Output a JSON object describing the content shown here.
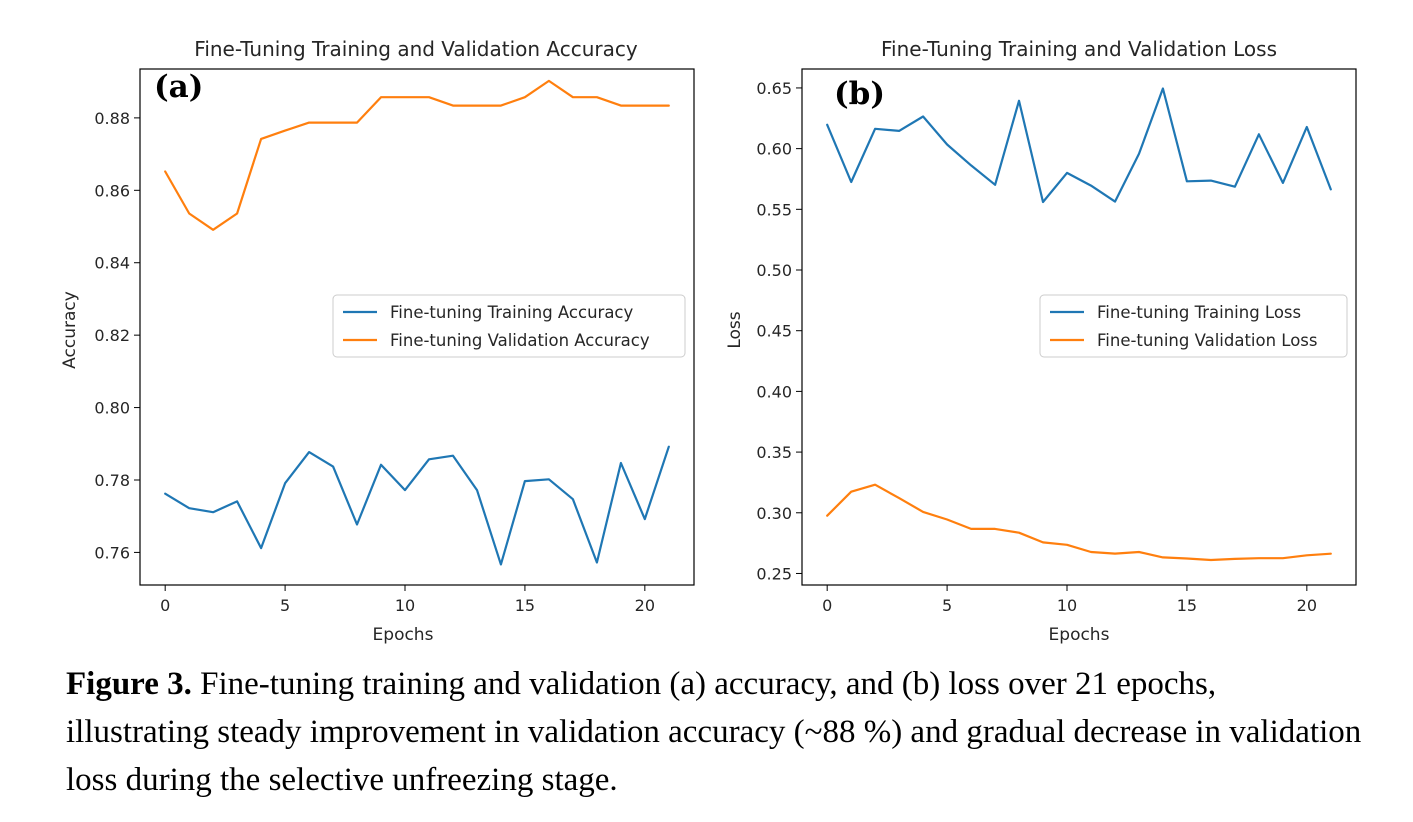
{
  "figure": {
    "caption_label": "Figure 3.",
    "caption_text": " Fine-tuning training and validation (a) accuracy, and (b) loss over 21 epochs, illustrating steady improvement in validation accuracy (~88 %) and gradual decrease in validation loss during the selective unfreezing stage."
  },
  "chart_data": [
    {
      "type": "line",
      "panel_tag": "(a)",
      "title": "Fine-Tuning Training and Validation Accuracy",
      "xlabel": "Epochs",
      "ylabel": "Accuracy",
      "xlim": [
        -1.05,
        22.05
      ],
      "ylim": [
        0.751,
        0.8935
      ],
      "xticks": [
        0,
        5,
        10,
        15,
        20
      ],
      "yticks": [
        0.76,
        0.78,
        0.8,
        0.82,
        0.84,
        0.86,
        0.88
      ],
      "ytick_labels": [
        "0.76",
        "0.78",
        "0.80",
        "0.82",
        "0.84",
        "0.86",
        "0.88"
      ],
      "grid": false,
      "legend_position": "center-right",
      "x": [
        0,
        1,
        2,
        3,
        4,
        5,
        6,
        7,
        8,
        9,
        10,
        11,
        12,
        13,
        14,
        15,
        16,
        17,
        18,
        19,
        20,
        21
      ],
      "series": [
        {
          "name": "Fine-tuning Training Accuracy",
          "color": "#1f77b4",
          "values": [
            0.7762,
            0.7722,
            0.7711,
            0.7741,
            0.7612,
            0.7791,
            0.7877,
            0.7837,
            0.7677,
            0.7842,
            0.7772,
            0.7857,
            0.7867,
            0.7772,
            0.7567,
            0.7797,
            0.7802,
            0.7747,
            0.7572,
            0.7847,
            0.7692,
            0.7892
          ]
        },
        {
          "name": "Fine-tuning Validation Accuracy",
          "color": "#ff7f0e",
          "values": [
            0.8652,
            0.8536,
            0.8491,
            0.8536,
            0.8742,
            0.8765,
            0.8787,
            0.8787,
            0.8787,
            0.8857,
            0.8857,
            0.8857,
            0.8834,
            0.8834,
            0.8834,
            0.8857,
            0.8902,
            0.8857,
            0.8857,
            0.8834,
            0.8834,
            0.8834
          ]
        }
      ]
    },
    {
      "type": "line",
      "panel_tag": "(b)",
      "title": "Fine-Tuning Training and Validation Loss",
      "xlabel": "Epochs",
      "ylabel": "Loss",
      "xlim": [
        -1.05,
        22.05
      ],
      "ylim": [
        0.2405,
        0.6656
      ],
      "xticks": [
        0,
        5,
        10,
        15,
        20
      ],
      "yticks": [
        0.25,
        0.3,
        0.35,
        0.4,
        0.45,
        0.5,
        0.55,
        0.6,
        0.65
      ],
      "ytick_labels": [
        "0.25",
        "0.30",
        "0.35",
        "0.40",
        "0.45",
        "0.50",
        "0.55",
        "0.60",
        "0.65"
      ],
      "grid": false,
      "legend_position": "center-right",
      "x": [
        0,
        1,
        2,
        3,
        4,
        5,
        6,
        7,
        8,
        9,
        10,
        11,
        12,
        13,
        14,
        15,
        16,
        17,
        18,
        19,
        20,
        21
      ],
      "series": [
        {
          "name": "Fine-tuning Training Loss",
          "color": "#1f77b4",
          "values": [
            0.6196,
            0.5725,
            0.6163,
            0.6146,
            0.6265,
            0.6034,
            0.5862,
            0.5702,
            0.6394,
            0.556,
            0.58,
            0.5695,
            0.5564,
            0.5957,
            0.6495,
            0.5731,
            0.5737,
            0.5686,
            0.6118,
            0.5718,
            0.6178,
            0.5664
          ]
        },
        {
          "name": "Fine-tuning Validation Loss",
          "color": "#ff7f0e",
          "values": [
            0.2976,
            0.3174,
            0.3231,
            0.3121,
            0.3007,
            0.2945,
            0.2867,
            0.2867,
            0.2836,
            0.2756,
            0.2736,
            0.2677,
            0.2664,
            0.2677,
            0.2632,
            0.2623,
            0.2611,
            0.262,
            0.2626,
            0.2626,
            0.265,
            0.2663
          ]
        }
      ]
    }
  ]
}
